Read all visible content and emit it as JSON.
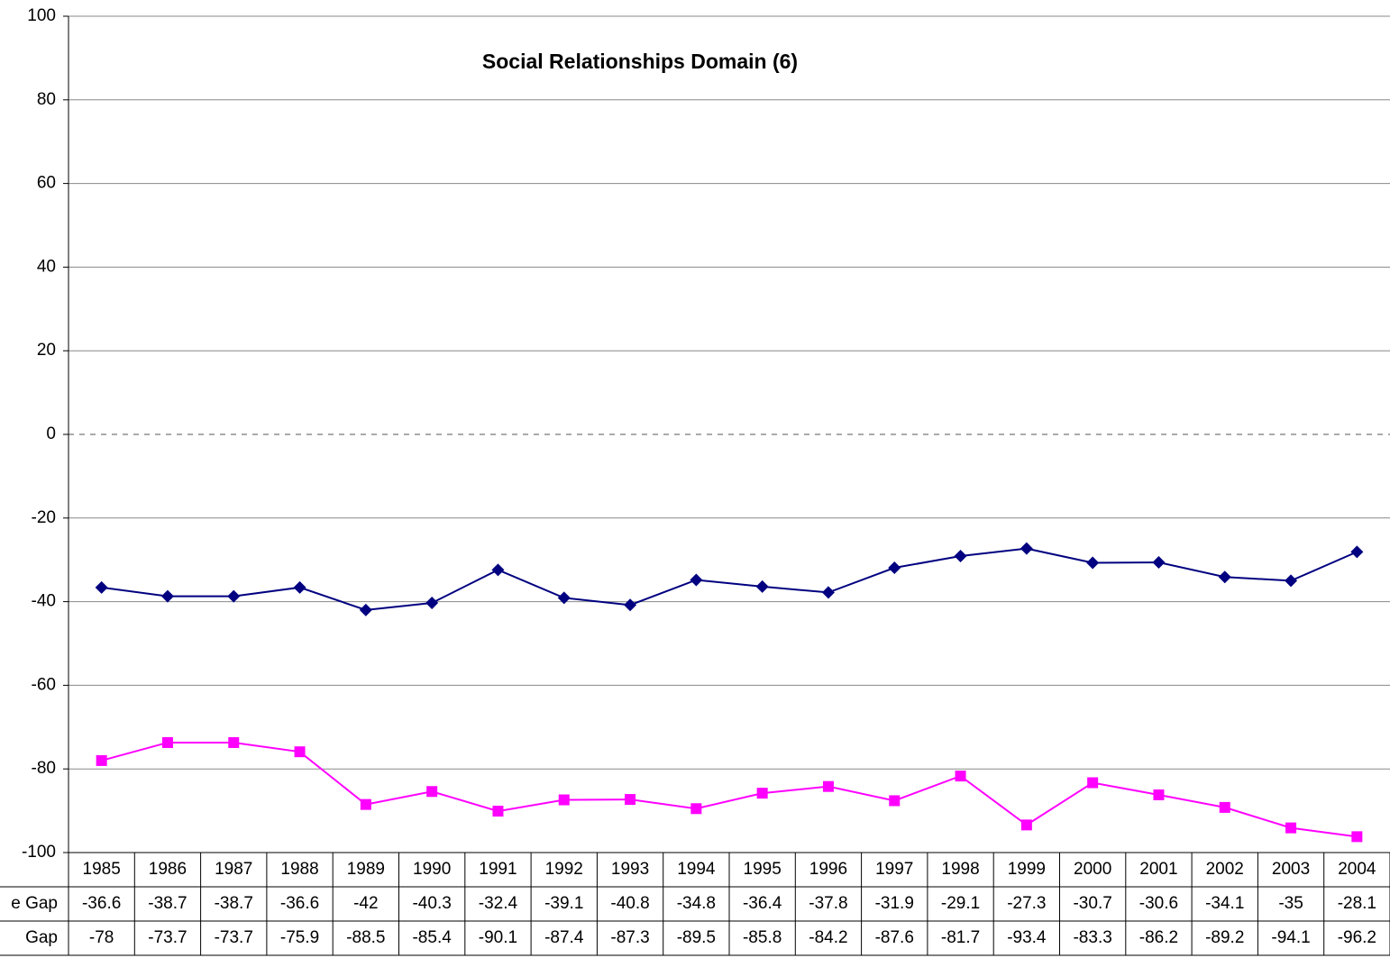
{
  "chart_data": {
    "type": "line",
    "title": "Social Relationships Domain (6)",
    "categories": [
      "1985",
      "1986",
      "1987",
      "1988",
      "1989",
      "1990",
      "1991",
      "1992",
      "1993",
      "1994",
      "1995",
      "1996",
      "1997",
      "1998",
      "1999",
      "2000",
      "2001",
      "2002",
      "2003",
      "2004"
    ],
    "series": [
      {
        "name": "e Gap",
        "color": "#000080",
        "marker": "diamond",
        "values": [
          -36.6,
          -38.7,
          -38.7,
          -36.6,
          -42,
          -40.3,
          -32.4,
          -39.1,
          -40.8,
          -34.8,
          -36.4,
          -37.8,
          -31.9,
          -29.1,
          -27.3,
          -30.7,
          -30.6,
          -34.1,
          -35,
          -28.1
        ]
      },
      {
        "name": "Gap",
        "color": "#ff00ff",
        "marker": "square",
        "values": [
          -78,
          -73.7,
          -73.7,
          -75.9,
          -88.5,
          -85.4,
          -90.1,
          -87.4,
          -87.3,
          -89.5,
          -85.8,
          -84.2,
          -87.6,
          -81.7,
          -93.4,
          -83.3,
          -86.2,
          -89.2,
          -94.1,
          -96.2
        ]
      }
    ],
    "ylim": [
      -100,
      100
    ],
    "yticks": [
      -100,
      -80,
      -60,
      -40,
      -20,
      0,
      20,
      40,
      60,
      80,
      100
    ],
    "grid": true,
    "data_table": true
  }
}
